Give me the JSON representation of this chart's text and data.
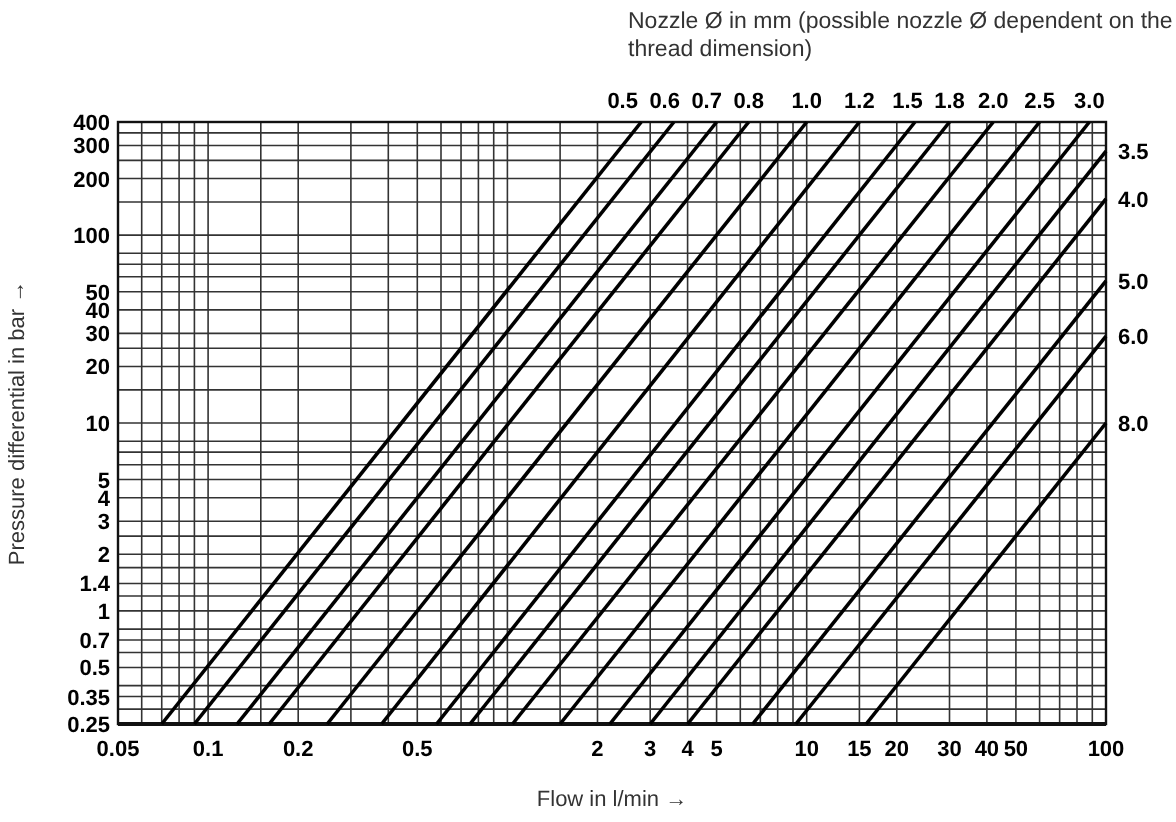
{
  "chart_data": {
    "type": "line",
    "title": "Nozzle Ø in mm (possible nozzle Ø dependent on the thread dimension)",
    "xlabel": "Flow in l/min →",
    "ylabel": "Pressure differential in bar →",
    "log": "xy",
    "grid": true,
    "marker": "none",
    "line_style": "solid",
    "xlim": [
      0.05,
      100
    ],
    "ylim": [
      0.25,
      400
    ],
    "xticks": [
      0.05,
      {
        "value": 0.06,
        "label": null
      },
      {
        "value": 0.07,
        "label": null
      },
      {
        "value": 0.08,
        "label": null
      },
      {
        "value": 0.09,
        "label": null
      },
      0.1,
      {
        "value": 0.15,
        "label": null
      },
      0.2,
      {
        "value": 0.3,
        "label": null
      },
      {
        "value": 0.4,
        "label": null
      },
      0.5,
      {
        "value": 0.6,
        "label": null
      },
      {
        "value": 0.7,
        "label": null
      },
      {
        "value": 0.8,
        "label": null
      },
      {
        "value": 0.9,
        "label": null
      },
      {
        "value": 1,
        "label": null
      },
      {
        "value": 1.5,
        "label": null
      },
      2,
      3,
      4,
      5,
      {
        "value": 6,
        "label": null
      },
      {
        "value": 7,
        "label": null
      },
      {
        "value": 8,
        "label": null
      },
      {
        "value": 9,
        "label": null
      },
      10,
      15,
      20,
      30,
      40,
      50,
      {
        "value": 60,
        "label": null
      },
      {
        "value": 70,
        "label": null
      },
      {
        "value": 80,
        "label": null
      },
      {
        "value": 90,
        "label": null
      },
      100
    ],
    "yticks": [
      0.25,
      {
        "value": 0.3,
        "label": null
      },
      0.35,
      {
        "value": 0.4,
        "label": null
      },
      0.5,
      {
        "value": 0.6,
        "label": null
      },
      0.7,
      {
        "value": 0.8,
        "label": null
      },
      1,
      {
        "value": 1.2,
        "label": null
      },
      1.4,
      {
        "value": 1.7,
        "label": null
      },
      2,
      {
        "value": 2.5,
        "label": null
      },
      3,
      4,
      5,
      {
        "value": 6,
        "label": null
      },
      {
        "value": 7,
        "label": null
      },
      {
        "value": 8,
        "label": null
      },
      10,
      {
        "value": 15,
        "label": null
      },
      20,
      {
        "value": 25,
        "label": null
      },
      30,
      40,
      50,
      {
        "value": 60,
        "label": null
      },
      {
        "value": 70,
        "label": null
      },
      {
        "value": 80,
        "label": null
      },
      100,
      {
        "value": 150,
        "label": null
      },
      200,
      {
        "value": 250,
        "label": null
      },
      300,
      {
        "value": 350,
        "label": null
      },
      400
    ],
    "series": [
      {
        "name": "0.5",
        "color": "#000000",
        "x": [
          0.07,
          2.8
        ],
        "values": [
          0.25,
          400
        ]
      },
      {
        "name": "0.6",
        "color": "#000000",
        "x": [
          0.09,
          3.6
        ],
        "values": [
          0.25,
          400
        ]
      },
      {
        "name": "0.7",
        "color": "#000000",
        "x": [
          0.125,
          5
        ],
        "values": [
          0.25,
          400
        ]
      },
      {
        "name": "0.8",
        "color": "#000000",
        "x": [
          0.16,
          6.4
        ],
        "values": [
          0.25,
          400
        ]
      },
      {
        "name": "1.0",
        "color": "#000000",
        "x": [
          0.25,
          10
        ],
        "values": [
          0.25,
          400
        ]
      },
      {
        "name": "1.2",
        "color": "#000000",
        "x": [
          0.38,
          15
        ],
        "values": [
          0.25,
          400
        ]
      },
      {
        "name": "1.5",
        "color": "#000000",
        "x": [
          0.58,
          23
        ],
        "values": [
          0.25,
          400
        ]
      },
      {
        "name": "1.8",
        "color": "#000000",
        "x": [
          0.75,
          30
        ],
        "values": [
          0.25,
          400
        ]
      },
      {
        "name": "2.0",
        "color": "#000000",
        "x": [
          1.04,
          42
        ],
        "values": [
          0.25,
          400
        ]
      },
      {
        "name": "2.5",
        "color": "#000000",
        "x": [
          1.5,
          60
        ],
        "values": [
          0.25,
          400
        ]
      },
      {
        "name": "3.0",
        "color": "#000000",
        "x": [
          2.2,
          88
        ],
        "values": [
          0.25,
          400
        ]
      },
      {
        "name": "3.5",
        "color": "#000000",
        "x": [
          3,
          100
        ],
        "values": [
          0.25,
          280
        ]
      },
      {
        "name": "4.0",
        "color": "#000000",
        "x": [
          4,
          100
        ],
        "values": [
          0.25,
          156
        ]
      },
      {
        "name": "5.0",
        "color": "#000000",
        "x": [
          6.6,
          100
        ],
        "values": [
          0.25,
          57
        ]
      },
      {
        "name": "6.0",
        "color": "#000000",
        "x": [
          9.2,
          100
        ],
        "values": [
          0.25,
          29
        ]
      },
      {
        "name": "8.0",
        "color": "#000000",
        "x": [
          15.8,
          100
        ],
        "values": [
          0.25,
          10
        ]
      }
    ]
  }
}
